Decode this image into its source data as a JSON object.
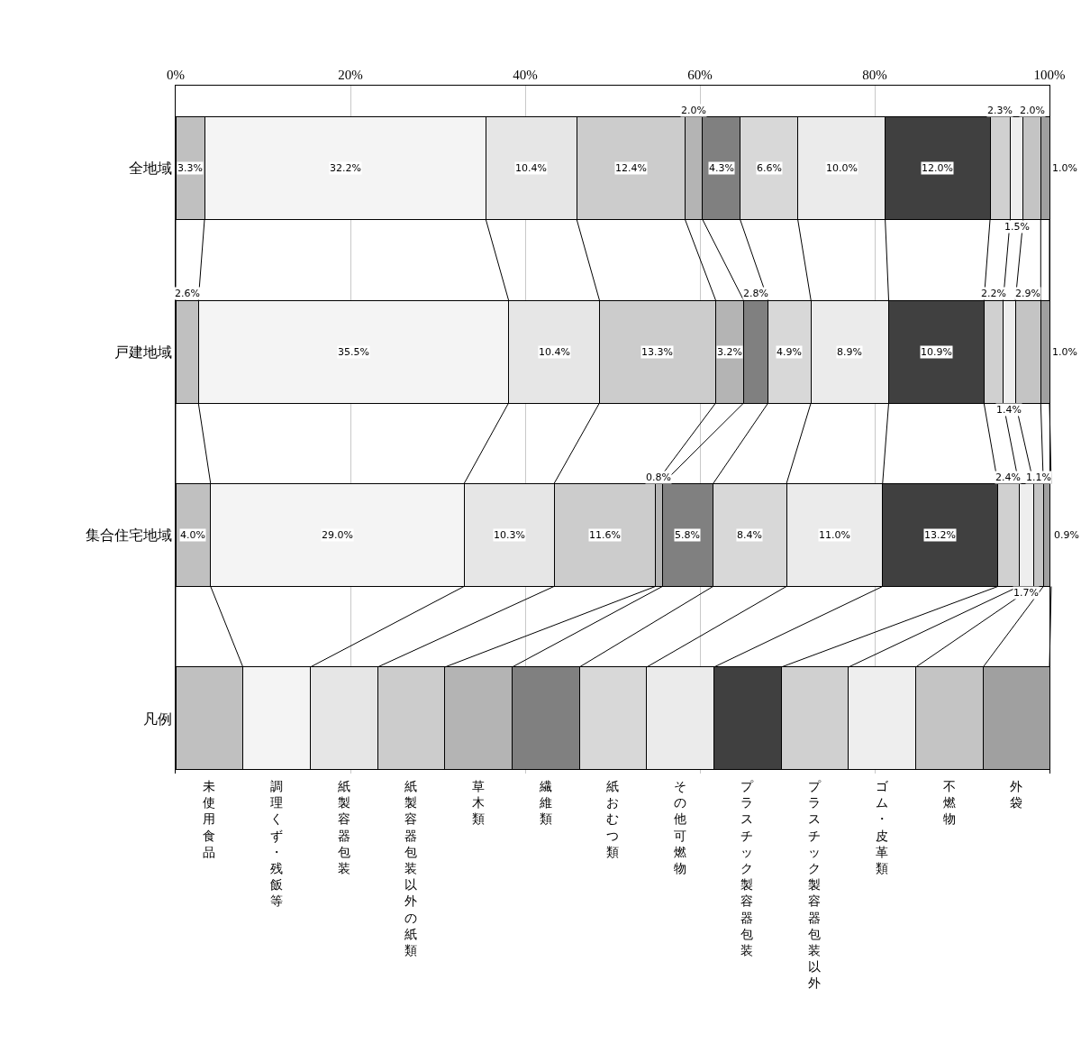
{
  "chart_data": {
    "type": "bar",
    "orientation": "horizontal",
    "stacked": true,
    "categories": [
      "全地域",
      "戸建地域",
      "集合住宅地域",
      "凡例"
    ],
    "xlim": [
      0,
      100
    ],
    "xticks": [
      {
        "value": 0,
        "label": "0%"
      },
      {
        "value": 20,
        "label": "20%"
      },
      {
        "value": 40,
        "label": "40%"
      },
      {
        "value": 60,
        "label": "60%"
      },
      {
        "value": 80,
        "label": "80%"
      },
      {
        "value": 100,
        "label": "100%"
      }
    ],
    "grid": "x",
    "legend": false,
    "series": [
      {
        "name": "未使用食品",
        "color": "#c0c0c0",
        "values": [
          3.3,
          2.6,
          4.0,
          7.7
        ],
        "value_labels": [
          "3.3%",
          "2.6%",
          "4.0%",
          null
        ]
      },
      {
        "name": "調理くず・残飯等",
        "color": "#f4f4f4",
        "values": [
          32.2,
          35.5,
          29.0,
          7.7
        ],
        "value_labels": [
          "32.2%",
          "35.5%",
          "29.0%",
          null
        ]
      },
      {
        "name": "紙製容器包装",
        "color": "#e6e6e6",
        "values": [
          10.4,
          10.4,
          10.3,
          7.7
        ],
        "value_labels": [
          "10.4%",
          "10.4%",
          "10.3%",
          null
        ]
      },
      {
        "name": "紙製容器包装以外の紙類",
        "color": "#cccccc",
        "values": [
          12.4,
          13.3,
          11.6,
          7.7
        ],
        "value_labels": [
          "12.4%",
          "13.3%",
          "11.6%",
          null
        ]
      },
      {
        "name": "草木類",
        "color": "#b4b4b4",
        "values": [
          2.0,
          3.2,
          0.8,
          7.7
        ],
        "value_labels": [
          "2.0%",
          "3.2%",
          "0.8%",
          null
        ]
      },
      {
        "name": "繊維類",
        "color": "#808080",
        "values": [
          4.3,
          2.8,
          5.8,
          7.7
        ],
        "value_labels": [
          "4.3%",
          "2.8%",
          "5.8%",
          null
        ]
      },
      {
        "name": "紙おむつ類",
        "color": "#d8d8d8",
        "values": [
          6.6,
          4.9,
          8.4,
          7.7
        ],
        "value_labels": [
          "6.6%",
          "4.9%",
          "8.4%",
          null
        ]
      },
      {
        "name": "その他可燃物",
        "color": "#ebebeb",
        "values": [
          10.0,
          8.9,
          11.0,
          7.7
        ],
        "value_labels": [
          "10.0%",
          "8.9%",
          "11.0%",
          null
        ]
      },
      {
        "name": "プラスチック製容器包装",
        "color": "#404040",
        "values": [
          12.0,
          10.9,
          13.2,
          7.7
        ],
        "value_labels": [
          "12.0%",
          "10.9%",
          "13.2%",
          null
        ]
      },
      {
        "name": "プラスチック製容器包装以外",
        "color": "#d0d0d0",
        "values": [
          2.3,
          2.2,
          2.4,
          7.7
        ],
        "value_labels": [
          "2.3%",
          "2.2%",
          "2.4%",
          null
        ]
      },
      {
        "name": "ゴム・皮革類",
        "color": "#eeeeee",
        "values": [
          1.5,
          1.4,
          1.7,
          7.7
        ],
        "value_labels": [
          "1.5%",
          "1.4%",
          "1.7%",
          null
        ]
      },
      {
        "name": "不燃物",
        "color": "#c4c4c4",
        "values": [
          2.0,
          2.9,
          1.1,
          7.7
        ],
        "value_labels": [
          "2.0%",
          "2.9%",
          "1.1%",
          null
        ]
      },
      {
        "name": "外袋",
        "color": "#a0a0a0",
        "values": [
          1.0,
          1.0,
          0.9,
          7.6
        ],
        "value_labels": [
          "1.0%",
          "1.0%",
          "0.9%",
          null
        ]
      }
    ]
  }
}
